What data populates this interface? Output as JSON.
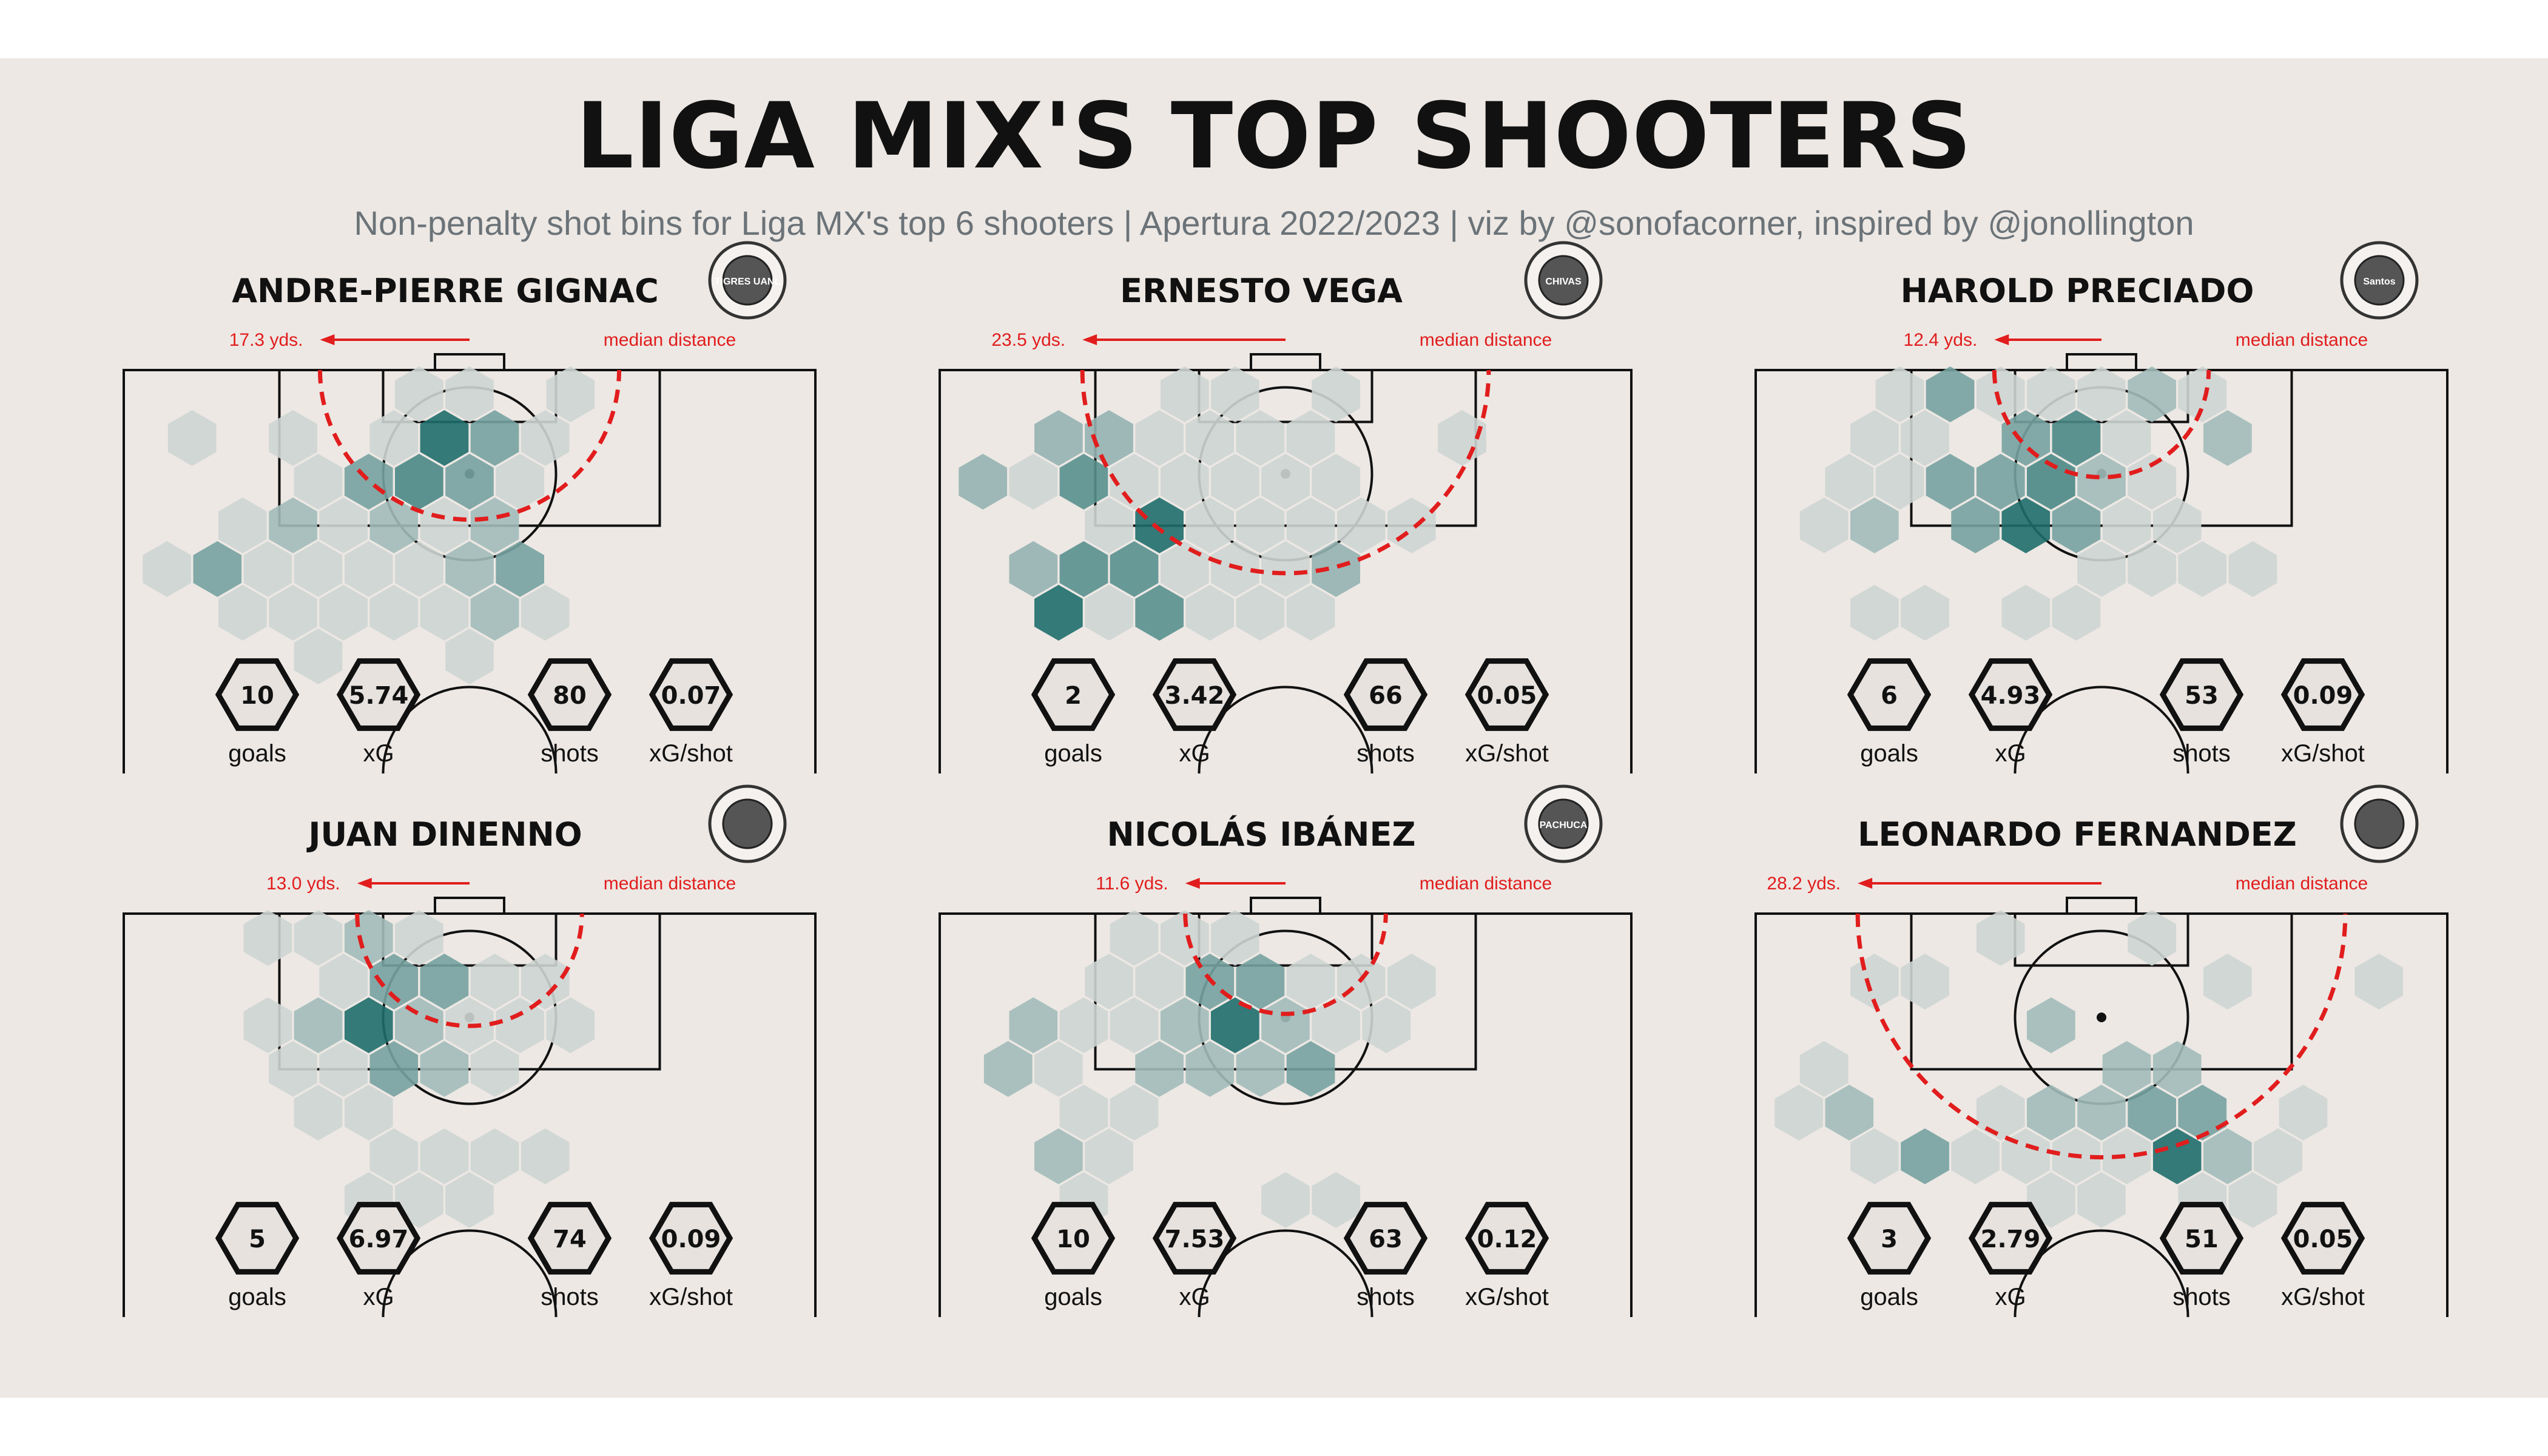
{
  "title": "LIGA MIX'S TOP SHOOTERS",
  "subtitle": "Non-penalty shot bins for Liga MX's top 6 shooters | Apertura 2022/2023 | viz by @sonofacorner, inspired by @jonollington",
  "colors": {
    "background": "#ede8e4",
    "hex_low": "#cdd5d3",
    "hex_high": "#1e6e6c",
    "median_line": "#e11d1d",
    "pitch_line": "#111111"
  },
  "stat_labels": [
    "goals",
    "xG",
    "shots",
    "xG/shot"
  ],
  "median_label": "median distance",
  "chart_data": [
    {
      "type": "heatmap",
      "player": "ANDRE-PIERRE GIGNAC",
      "team_logo": "tigres-uanl-logo",
      "logo_text": "TIGRES UANL",
      "median_distance": 17.3,
      "median_distance_label": "17.3 yds.",
      "stats": {
        "goals": "10",
        "xG": "5.74",
        "shots": "80",
        "xG/shot": "0.07"
      },
      "bins": [
        [
          2,
          0,
          1
        ],
        [
          3,
          0,
          1
        ],
        [
          4,
          1,
          1
        ],
        [
          5,
          0,
          1
        ],
        [
          -1,
          1,
          1
        ],
        [
          1,
          1,
          1
        ],
        [
          2,
          1,
          5
        ],
        [
          3,
          1,
          3
        ],
        [
          -3,
          1,
          1
        ],
        [
          0,
          2,
          1
        ],
        [
          1,
          2,
          3
        ],
        [
          2,
          2,
          4
        ],
        [
          3,
          2,
          3
        ],
        [
          4,
          2,
          1
        ],
        [
          -2,
          3,
          1
        ],
        [
          -1,
          3,
          2
        ],
        [
          0,
          3,
          1
        ],
        [
          1,
          3,
          2
        ],
        [
          2,
          3,
          1
        ],
        [
          3,
          3,
          2
        ],
        [
          -3,
          4,
          1
        ],
        [
          -2,
          4,
          3
        ],
        [
          -1,
          4,
          1
        ],
        [
          0,
          4,
          1
        ],
        [
          1,
          4,
          1
        ],
        [
          2,
          4,
          1
        ],
        [
          3,
          4,
          2
        ],
        [
          4,
          4,
          3
        ],
        [
          -2,
          5,
          1
        ],
        [
          -1,
          5,
          1
        ],
        [
          0,
          5,
          1
        ],
        [
          1,
          5,
          1
        ],
        [
          2,
          5,
          1
        ],
        [
          3,
          5,
          2
        ],
        [
          4,
          5,
          1
        ],
        [
          0,
          6,
          1
        ],
        [
          3,
          6,
          1
        ]
      ]
    },
    {
      "type": "heatmap",
      "player": "ERNESTO VEGA",
      "team_logo": "chivas-guadalajara-logo",
      "logo_text": "CHIVAS",
      "median_distance": 23.5,
      "median_distance_label": "23.5 yds.",
      "stats": {
        "goals": "2",
        "xG": "3.42",
        "shots": "66",
        "xG/shot": "0.05"
      },
      "bins": [
        [
          1,
          0,
          1
        ],
        [
          2,
          0,
          1
        ],
        [
          4,
          0,
          1
        ],
        [
          -2,
          1,
          2
        ],
        [
          -1,
          1,
          2
        ],
        [
          0,
          1,
          1
        ],
        [
          1,
          1,
          1
        ],
        [
          2,
          1,
          1
        ],
        [
          3,
          1,
          1
        ],
        [
          6,
          1,
          1
        ],
        [
          -3,
          2,
          2
        ],
        [
          -2,
          2,
          1
        ],
        [
          -1,
          2,
          3
        ],
        [
          0,
          2,
          1
        ],
        [
          1,
          2,
          1
        ],
        [
          2,
          2,
          1
        ],
        [
          3,
          2,
          1
        ],
        [
          4,
          2,
          1
        ],
        [
          -1,
          3,
          1
        ],
        [
          0,
          3,
          4
        ],
        [
          1,
          3,
          1
        ],
        [
          2,
          3,
          1
        ],
        [
          3,
          3,
          1
        ],
        [
          4,
          3,
          1
        ],
        [
          5,
          3,
          1
        ],
        [
          -2,
          4,
          2
        ],
        [
          -1,
          4,
          3
        ],
        [
          0,
          4,
          3
        ],
        [
          1,
          4,
          1
        ],
        [
          2,
          4,
          1
        ],
        [
          3,
          4,
          1
        ],
        [
          4,
          4,
          2
        ],
        [
          -2,
          5,
          4
        ],
        [
          -1,
          5,
          1
        ],
        [
          0,
          5,
          3
        ],
        [
          1,
          5,
          1
        ],
        [
          2,
          5,
          1
        ],
        [
          3,
          5,
          1
        ]
      ]
    },
    {
      "type": "heatmap",
      "player": "HAROLD PRECIADO",
      "team_logo": "santos-laguna-logo",
      "logo_text": "Santos",
      "median_distance": 12.4,
      "median_distance_label": "12.4 yds.",
      "stats": {
        "goals": "6",
        "xG": "4.93",
        "shots": "53",
        "xG/shot": "0.09"
      },
      "bins": [
        [
          1,
          0,
          1
        ],
        [
          -1,
          0,
          1
        ],
        [
          0,
          0,
          3
        ],
        [
          2,
          0,
          1
        ],
        [
          3,
          0,
          1
        ],
        [
          4,
          0,
          2
        ],
        [
          5,
          0,
          1
        ],
        [
          -2,
          1,
          1
        ],
        [
          -1,
          1,
          1
        ],
        [
          1,
          1,
          3
        ],
        [
          2,
          1,
          4
        ],
        [
          3,
          1,
          1
        ],
        [
          5,
          1,
          2
        ],
        [
          -2,
          2,
          1
        ],
        [
          -1,
          2,
          1
        ],
        [
          0,
          2,
          3
        ],
        [
          1,
          2,
          3
        ],
        [
          2,
          2,
          4
        ],
        [
          3,
          2,
          2
        ],
        [
          4,
          2,
          1
        ],
        [
          -3,
          3,
          1
        ],
        [
          -2,
          3,
          2
        ],
        [
          0,
          3,
          3
        ],
        [
          1,
          3,
          5
        ],
        [
          2,
          3,
          3
        ],
        [
          3,
          3,
          1
        ],
        [
          4,
          3,
          1
        ],
        [
          3,
          4,
          1
        ],
        [
          4,
          4,
          1
        ],
        [
          5,
          4,
          1
        ],
        [
          6,
          4,
          1
        ],
        [
          -2,
          5,
          1
        ],
        [
          -1,
          5,
          1
        ],
        [
          1,
          5,
          1
        ],
        [
          2,
          5,
          1
        ]
      ]
    },
    {
      "type": "heatmap",
      "player": "JUAN DINENNO",
      "team_logo": "pumas-unam-logo",
      "logo_text": "",
      "median_distance": 13.0,
      "median_distance_label": "13.0 yds.",
      "stats": {
        "goals": "5",
        "xG": "6.97",
        "shots": "74",
        "xG/shot": "0.09"
      },
      "bins": [
        [
          0,
          0,
          1
        ],
        [
          1,
          0,
          2
        ],
        [
          -1,
          0,
          1
        ],
        [
          2,
          0,
          1
        ],
        [
          0,
          1,
          1
        ],
        [
          1,
          1,
          3
        ],
        [
          2,
          1,
          3
        ],
        [
          3,
          1,
          1
        ],
        [
          4,
          1,
          1
        ],
        [
          -1,
          2,
          1
        ],
        [
          0,
          2,
          2
        ],
        [
          1,
          2,
          5
        ],
        [
          2,
          2,
          2
        ],
        [
          3,
          2,
          1
        ],
        [
          4,
          2,
          1
        ],
        [
          5,
          2,
          1
        ],
        [
          -1,
          3,
          1
        ],
        [
          0,
          3,
          1
        ],
        [
          1,
          3,
          3
        ],
        [
          2,
          3,
          2
        ],
        [
          3,
          3,
          1
        ],
        [
          0,
          4,
          1
        ],
        [
          1,
          4,
          1
        ],
        [
          1,
          5,
          1
        ],
        [
          2,
          5,
          1
        ],
        [
          3,
          5,
          1
        ],
        [
          4,
          5,
          1
        ],
        [
          1,
          6,
          1
        ],
        [
          2,
          6,
          1
        ],
        [
          3,
          6,
          1
        ]
      ]
    },
    {
      "type": "heatmap",
      "player": "NICOLÁS IBÁNEZ",
      "team_logo": "pachuca-logo",
      "logo_text": "PACHUCA",
      "median_distance": 11.6,
      "median_distance_label": "11.6 yds.",
      "stats": {
        "goals": "10",
        "xG": "7.53",
        "shots": "63",
        "xG/shot": "0.12"
      },
      "bins": [
        [
          0,
          0,
          1
        ],
        [
          1,
          0,
          1
        ],
        [
          2,
          0,
          1
        ],
        [
          0,
          1,
          1
        ],
        [
          1,
          1,
          3
        ],
        [
          2,
          1,
          3
        ],
        [
          3,
          1,
          1
        ],
        [
          -1,
          1,
          1
        ],
        [
          4,
          1,
          1
        ],
        [
          5,
          1,
          1
        ],
        [
          -2,
          2,
          2
        ],
        [
          -1,
          2,
          1
        ],
        [
          0,
          2,
          1
        ],
        [
          1,
          2,
          2
        ],
        [
          2,
          2,
          5
        ],
        [
          3,
          2,
          2
        ],
        [
          4,
          2,
          1
        ],
        [
          5,
          2,
          1
        ],
        [
          -3,
          3,
          2
        ],
        [
          -2,
          3,
          1
        ],
        [
          0,
          3,
          2
        ],
        [
          1,
          3,
          2
        ],
        [
          2,
          3,
          2
        ],
        [
          3,
          3,
          3
        ],
        [
          -1,
          4,
          1
        ],
        [
          0,
          4,
          1
        ],
        [
          -2,
          5,
          2
        ],
        [
          -1,
          5,
          1
        ],
        [
          3,
          6,
          1
        ],
        [
          4,
          6,
          1
        ],
        [
          -1,
          6,
          1
        ]
      ]
    },
    {
      "type": "heatmap",
      "player": "LEONARDO FERNANDEZ",
      "team_logo": "toluca-logo",
      "logo_text": "",
      "median_distance": 28.2,
      "median_distance_label": "28.2 yds.",
      "stats": {
        "goals": "3",
        "xG": "2.79",
        "shots": "51",
        "xG/shot": "0.05"
      },
      "bins": [
        [
          1,
          0,
          1
        ],
        [
          -2,
          1,
          1
        ],
        [
          -1,
          1,
          1
        ],
        [
          4,
          0,
          1
        ],
        [
          5,
          1,
          1
        ],
        [
          8,
          1,
          1
        ],
        [
          2,
          2,
          2
        ],
        [
          -3,
          3,
          1
        ],
        [
          3,
          3,
          2
        ],
        [
          4,
          3,
          2
        ],
        [
          -3,
          4,
          1
        ],
        [
          -2,
          4,
          2
        ],
        [
          1,
          4,
          1
        ],
        [
          2,
          4,
          2
        ],
        [
          3,
          4,
          2
        ],
        [
          4,
          4,
          3
        ],
        [
          5,
          4,
          3
        ],
        [
          7,
          4,
          1
        ],
        [
          -2,
          5,
          1
        ],
        [
          -1,
          5,
          3
        ],
        [
          0,
          5,
          1
        ],
        [
          1,
          5,
          1
        ],
        [
          2,
          5,
          1
        ],
        [
          3,
          5,
          1
        ],
        [
          4,
          5,
          5
        ],
        [
          5,
          5,
          2
        ],
        [
          6,
          5,
          1
        ],
        [
          2,
          6,
          1
        ],
        [
          3,
          6,
          1
        ],
        [
          5,
          6,
          1
        ],
        [
          6,
          6,
          1
        ]
      ]
    }
  ]
}
